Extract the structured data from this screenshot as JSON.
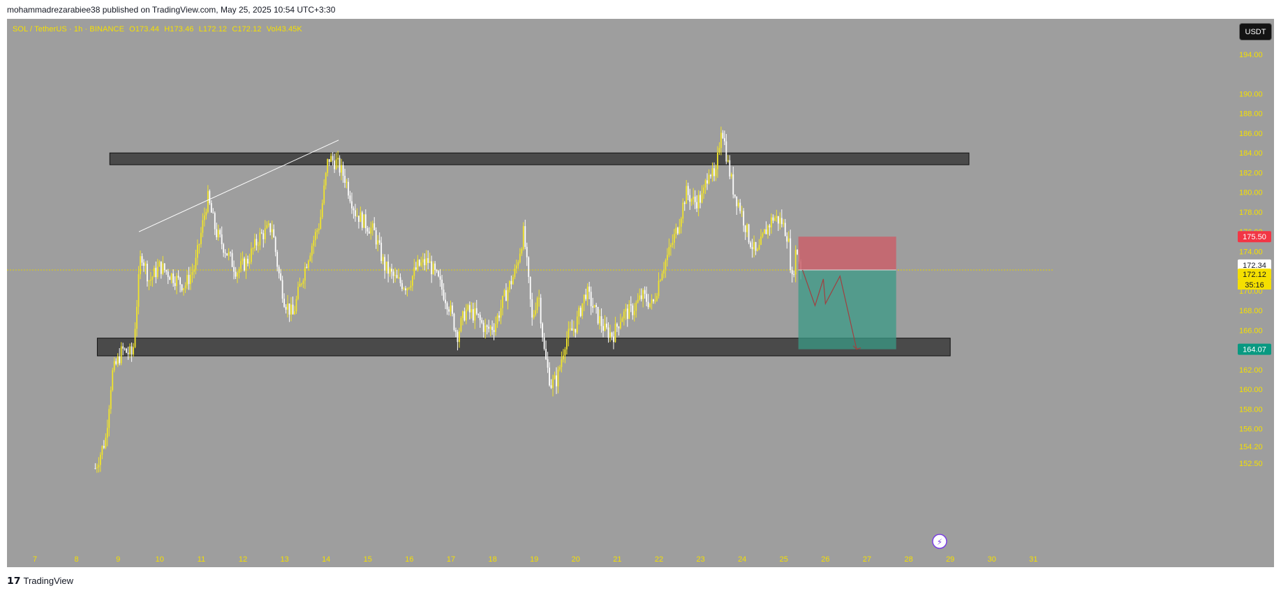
{
  "header": {
    "published": "mohammadrezarabiee38 published on TradingView.com, May 25, 2025 10:54 UTC+3:30"
  },
  "symbol": {
    "pair": "SOL / TetherUS · 1h · BINANCE",
    "open": "O173.44",
    "high": "H173.46",
    "low": "L172.12",
    "close": "C172.12",
    "vol": "Vol43.45K"
  },
  "currency_button": "USDT",
  "price_axis": {
    "ticks": [
      "194.00",
      "190.00",
      "188.00",
      "186.00",
      "184.00",
      "182.00",
      "180.00",
      "178.00",
      "176.00",
      "174.00",
      "170.00",
      "168.00",
      "166.00",
      "162.00",
      "160.00",
      "158.00",
      "156.00",
      "154.20",
      "152.50"
    ],
    "badge_stop": "175.50",
    "badge_last": "172.34",
    "badge_current": "172.12",
    "badge_countdown": "35:16",
    "badge_target": "164.07"
  },
  "time_axis": {
    "ticks": [
      "7",
      "8",
      "9",
      "10",
      "11",
      "12",
      "13",
      "14",
      "15",
      "16",
      "17",
      "18",
      "19",
      "20",
      "21",
      "22",
      "23",
      "24",
      "25",
      "26",
      "27",
      "28",
      "29",
      "30",
      "31"
    ]
  },
  "colors": {
    "candle_up": "#f2e52a",
    "candle_down": "#ffffff",
    "bg": "#9e9e9e",
    "stop": "#f23645",
    "target": "#089981"
  },
  "chart_data": {
    "type": "candlestick",
    "anchors": [
      {
        "day": 8.45,
        "price": 152.0
      },
      {
        "day": 8.7,
        "price": 155.0
      },
      {
        "day": 8.85,
        "price": 161.5
      },
      {
        "day": 9.1,
        "price": 164.0
      },
      {
        "day": 9.35,
        "price": 163.5
      },
      {
        "day": 9.55,
        "price": 174.0
      },
      {
        "day": 9.75,
        "price": 171.0
      },
      {
        "day": 10.0,
        "price": 172.5
      },
      {
        "day": 10.3,
        "price": 171.5
      },
      {
        "day": 10.6,
        "price": 170.5
      },
      {
        "day": 10.85,
        "price": 172.5
      },
      {
        "day": 11.15,
        "price": 179.5
      },
      {
        "day": 11.35,
        "price": 176.0
      },
      {
        "day": 11.6,
        "price": 174.0
      },
      {
        "day": 11.85,
        "price": 172.0
      },
      {
        "day": 12.1,
        "price": 173.0
      },
      {
        "day": 12.4,
        "price": 175.5
      },
      {
        "day": 12.7,
        "price": 176.5
      },
      {
        "day": 12.85,
        "price": 172.0
      },
      {
        "day": 13.0,
        "price": 169.0
      },
      {
        "day": 13.2,
        "price": 167.5
      },
      {
        "day": 13.4,
        "price": 171.0
      },
      {
        "day": 13.6,
        "price": 174.0
      },
      {
        "day": 13.85,
        "price": 177.0
      },
      {
        "day": 14.05,
        "price": 183.5
      },
      {
        "day": 14.25,
        "price": 183.0
      },
      {
        "day": 14.45,
        "price": 181.5
      },
      {
        "day": 14.7,
        "price": 178.0
      },
      {
        "day": 14.9,
        "price": 177.0
      },
      {
        "day": 15.15,
        "price": 176.0
      },
      {
        "day": 15.4,
        "price": 172.5
      },
      {
        "day": 15.7,
        "price": 171.0
      },
      {
        "day": 15.95,
        "price": 170.5
      },
      {
        "day": 16.2,
        "price": 172.5
      },
      {
        "day": 16.45,
        "price": 173.0
      },
      {
        "day": 16.7,
        "price": 171.0
      },
      {
        "day": 16.95,
        "price": 168.5
      },
      {
        "day": 17.15,
        "price": 165.5
      },
      {
        "day": 17.35,
        "price": 168.0
      },
      {
        "day": 17.6,
        "price": 167.5
      },
      {
        "day": 17.85,
        "price": 166.0
      },
      {
        "day": 18.05,
        "price": 166.5
      },
      {
        "day": 18.3,
        "price": 169.5
      },
      {
        "day": 18.55,
        "price": 172.0
      },
      {
        "day": 18.75,
        "price": 176.0
      },
      {
        "day": 18.95,
        "price": 167.0
      },
      {
        "day": 19.1,
        "price": 170.0
      },
      {
        "day": 19.25,
        "price": 163.5
      },
      {
        "day": 19.4,
        "price": 160.5
      },
      {
        "day": 19.55,
        "price": 161.0
      },
      {
        "day": 19.75,
        "price": 165.0
      },
      {
        "day": 20.0,
        "price": 166.5
      },
      {
        "day": 20.25,
        "price": 170.0
      },
      {
        "day": 20.45,
        "price": 168.0
      },
      {
        "day": 20.7,
        "price": 166.0
      },
      {
        "day": 20.9,
        "price": 165.5
      },
      {
        "day": 21.1,
        "price": 167.5
      },
      {
        "day": 21.35,
        "price": 168.0
      },
      {
        "day": 21.6,
        "price": 169.5
      },
      {
        "day": 21.85,
        "price": 168.5
      },
      {
        "day": 22.05,
        "price": 172.0
      },
      {
        "day": 22.25,
        "price": 174.0
      },
      {
        "day": 22.45,
        "price": 176.5
      },
      {
        "day": 22.65,
        "price": 180.0
      },
      {
        "day": 22.85,
        "price": 179.0
      },
      {
        "day": 23.05,
        "price": 179.5
      },
      {
        "day": 23.2,
        "price": 182.5
      },
      {
        "day": 23.35,
        "price": 181.0
      },
      {
        "day": 23.5,
        "price": 187.0
      },
      {
        "day": 23.65,
        "price": 183.0
      },
      {
        "day": 23.8,
        "price": 180.0
      },
      {
        "day": 23.95,
        "price": 178.5
      },
      {
        "day": 24.15,
        "price": 175.5
      },
      {
        "day": 24.35,
        "price": 173.5
      },
      {
        "day": 24.55,
        "price": 176.0
      },
      {
        "day": 24.75,
        "price": 177.5
      },
      {
        "day": 24.95,
        "price": 177.0
      },
      {
        "day": 25.1,
        "price": 175.5
      },
      {
        "day": 25.2,
        "price": 171.0
      },
      {
        "day": 25.3,
        "price": 174.5
      },
      {
        "day": 25.42,
        "price": 172.12
      }
    ],
    "zones": [
      {
        "name": "resistance",
        "price_top": 184.0,
        "price_bottom": 182.8,
        "day_start": 8.8,
        "day_end": 29.45
      },
      {
        "name": "support",
        "price_top": 165.2,
        "price_bottom": 163.4,
        "day_start": 8.5,
        "day_end": 29.0
      }
    ],
    "trendline": {
      "from": {
        "day": 9.5,
        "price": 176.0
      },
      "to": {
        "day": 14.3,
        "price": 185.3
      }
    },
    "position": {
      "day_start": 25.35,
      "day_end": 27.7,
      "stop": 175.5,
      "entry": 172.12,
      "target": 164.07
    },
    "projection": [
      {
        "day": 25.45,
        "price": 172.12
      },
      {
        "day": 25.75,
        "price": 168.5
      },
      {
        "day": 25.95,
        "price": 171.2
      },
      {
        "day": 26.0,
        "price": 168.7
      },
      {
        "day": 26.35,
        "price": 171.5
      },
      {
        "day": 26.75,
        "price": 164.07
      }
    ]
  }
}
